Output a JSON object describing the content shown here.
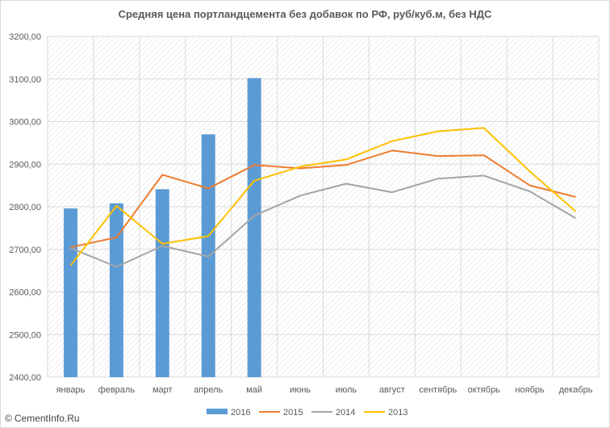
{
  "chart_data": {
    "type": "bar",
    "title": "Средняя цена портландцемента без добавок по РФ, руб/куб.м, без НДС",
    "xlabel": "",
    "ylabel": "",
    "ylim": [
      2400,
      3200
    ],
    "y_ticks": [
      "2400,00",
      "2500,00",
      "2600,00",
      "2700,00",
      "2800,00",
      "2900,00",
      "3000,00",
      "3100,00",
      "3200,00"
    ],
    "categories": [
      "январь",
      "февраль",
      "март",
      "апрель",
      "май",
      "июнь",
      "июль",
      "август",
      "сентябрь",
      "октябрь",
      "ноябрь",
      "декабрь"
    ],
    "grid": true,
    "legend_position": "bottom",
    "series": [
      {
        "name": "2016",
        "kind": "bar",
        "color": "#5b9bd5",
        "values": [
          2796,
          2808,
          2841,
          2970,
          3102,
          null,
          null,
          null,
          null,
          null,
          null,
          null
        ]
      },
      {
        "name": "2015",
        "kind": "line",
        "color": "#ed7d31",
        "values": [
          2705,
          2728,
          2875,
          2843,
          2898,
          2890,
          2898,
          2932,
          2919,
          2921,
          2850,
          2823
        ]
      },
      {
        "name": "2014",
        "kind": "line",
        "color": "#a5a5a5",
        "values": [
          2703,
          2659,
          2708,
          2683,
          2779,
          2826,
          2854,
          2834,
          2866,
          2873,
          2836,
          2773
        ]
      },
      {
        "name": "2013",
        "kind": "line",
        "color": "#ffc000",
        "values": [
          2662,
          2802,
          2713,
          2731,
          2861,
          2894,
          2911,
          2954,
          2977,
          2985,
          2883,
          2789
        ]
      }
    ]
  },
  "watermark": {
    "symbol": "©",
    "text": "CementInfo.Ru"
  }
}
